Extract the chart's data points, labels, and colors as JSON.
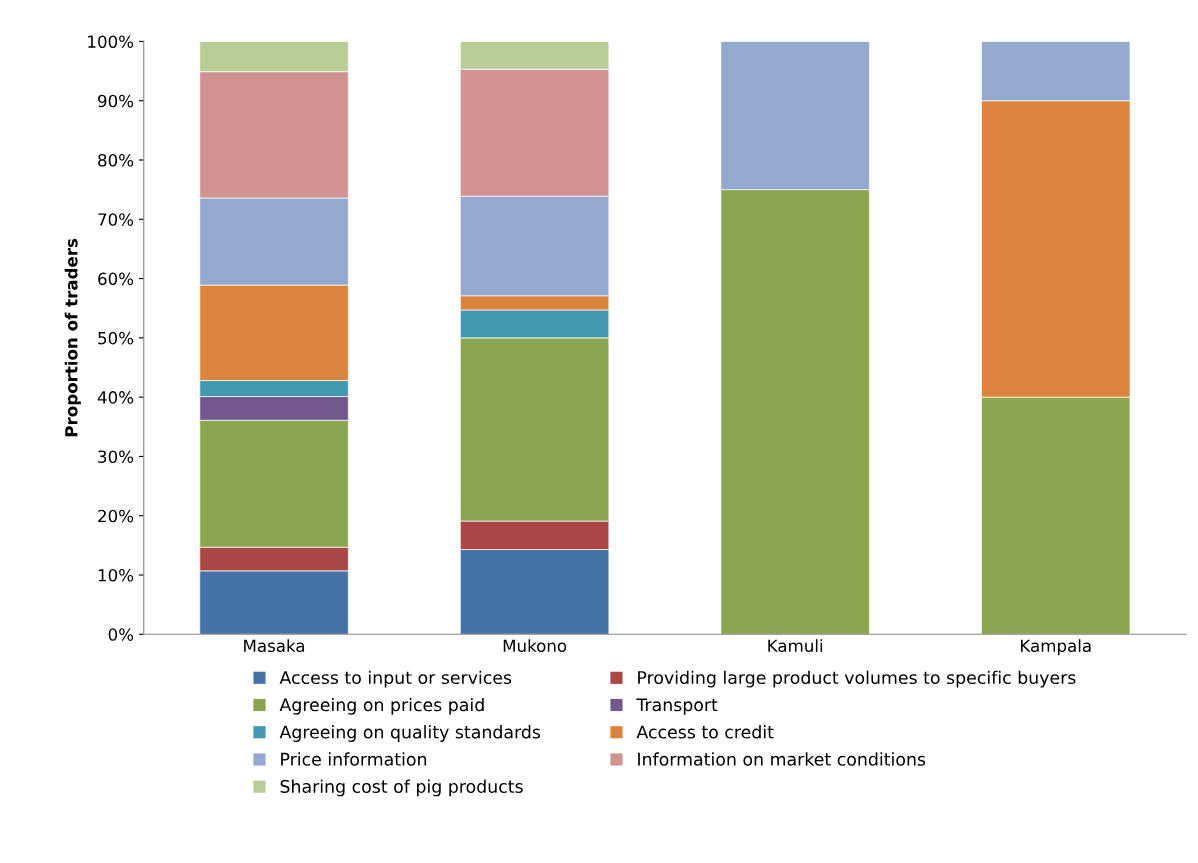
{
  "chart_data": {
    "type": "bar",
    "stacked": true,
    "ylabel": "Proportion of traders",
    "categories": [
      "Masaka",
      "Mukono",
      "Kamuli",
      "Kampala"
    ],
    "ylim": [
      0,
      100
    ],
    "yticks": [
      {
        "value": 0,
        "label": "0%"
      },
      {
        "value": 10,
        "label": "10%"
      },
      {
        "value": 20,
        "label": "20%"
      },
      {
        "value": 30,
        "label": "30%"
      },
      {
        "value": 40,
        "label": "40%"
      },
      {
        "value": 50,
        "label": "50%"
      },
      {
        "value": 60,
        "label": "60%"
      },
      {
        "value": 70,
        "label": "70%"
      },
      {
        "value": 80,
        "label": "80%"
      },
      {
        "value": 90,
        "label": "90%"
      },
      {
        "value": 100,
        "label": "100%"
      }
    ],
    "grid": false,
    "legend": "bottom",
    "series": [
      {
        "name": "Access to input or services",
        "color": "#4572a7",
        "values": [
          10.7,
          14.3,
          null,
          null
        ]
      },
      {
        "name": "Providing large product volumes to specific buyers",
        "color": "#aa4643",
        "values": [
          4.0,
          4.8,
          null,
          null
        ]
      },
      {
        "name": "Agreeing on prices paid",
        "color": "#89a54e",
        "values": [
          21.4,
          30.9,
          75,
          40
        ]
      },
      {
        "name": "Transport",
        "color": "#71588f",
        "values": [
          4.0,
          null,
          null,
          null
        ]
      },
      {
        "name": "Agreeing on quality standards",
        "color": "#4198af",
        "values": [
          2.7,
          4.7,
          null,
          null
        ]
      },
      {
        "name": "Access to credit",
        "color": "#db843d",
        "values": [
          16.1,
          2.4,
          null,
          50
        ]
      },
      {
        "name": "Price information",
        "color": "#93a9cf",
        "values": [
          14.7,
          16.8,
          25,
          10
        ]
      },
      {
        "name": "Information on market conditions",
        "color": "#d19392",
        "values": [
          21.3,
          21.4,
          null,
          null
        ]
      },
      {
        "name": "Sharing cost of pig products",
        "color": "#b9cd96",
        "values": [
          5.1,
          4.7,
          null,
          null
        ]
      }
    ]
  }
}
